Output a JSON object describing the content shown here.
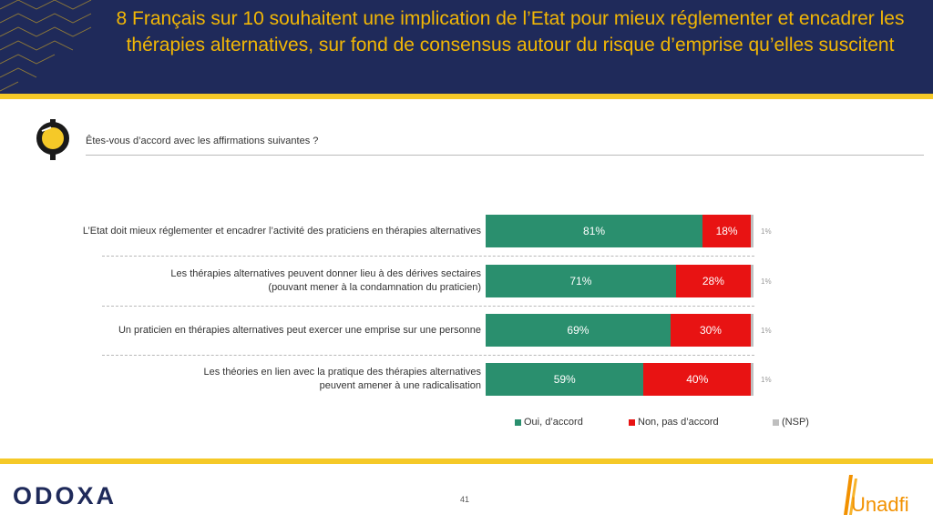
{
  "header": {
    "title": "8 Français sur 10 souhaitent une implication de l’Etat pour mieux réglementer et encadrer les thérapies alternatives, sur fond de consensus autour du risque d’emprise qu’elles suscitent"
  },
  "question": "Êtes-vous d’accord avec les affirmations suivantes ?",
  "chart_data": {
    "type": "bar",
    "orientation": "horizontal",
    "stacked": true,
    "categories": [
      [
        "L’Etat doit mieux réglementer et encadrer l’activité des praticiens en thérapies alternatives"
      ],
      [
        "Les thérapies alternatives peuvent donner lieu à des dérives sectaires",
        "(pouvant mener à la condamnation du praticien)"
      ],
      [
        "Un praticien en thérapies alternatives peut exercer une emprise sur une personne"
      ],
      [
        "Les théories en lien avec la pratique des thérapies alternatives",
        "peuvent amener à une radicalisation"
      ]
    ],
    "series": [
      {
        "name": "Oui, d’accord",
        "color": "#2a8f6e",
        "values": [
          81,
          71,
          69,
          59
        ],
        "labels": [
          "81%",
          "71%",
          "69%",
          "59%"
        ]
      },
      {
        "name": "Non, pas d’accord",
        "color": "#e81313",
        "values": [
          18,
          28,
          30,
          40
        ],
        "labels": [
          "18%",
          "28%",
          "30%",
          "40%"
        ]
      },
      {
        "name": "(NSP)",
        "color": "#bfbfbf",
        "values": [
          1,
          1,
          1,
          1
        ],
        "labels": [
          "1%",
          "1%",
          "1%",
          "1%"
        ]
      }
    ],
    "xlim": [
      0,
      100
    ]
  },
  "footer": {
    "logo_text": "ODOXA",
    "page_number": "41",
    "partner_logo_text": "Unadfi"
  },
  "colors": {
    "header_bg": "#1f2a5a",
    "title": "#f2b705",
    "accent_rule": "#f5c928"
  }
}
